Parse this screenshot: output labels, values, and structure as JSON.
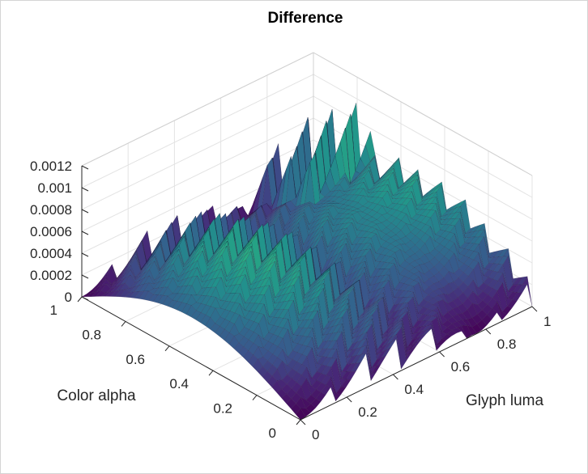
{
  "chart_data": {
    "type": "surface3d",
    "title": "Difference",
    "xlabel": "Color alpha",
    "ylabel": "Glyph luma",
    "zlabel": "",
    "xlim": [
      0,
      1
    ],
    "ylim": [
      0,
      1
    ],
    "zlim": [
      0,
      0.0012
    ],
    "x_ticks": [
      "0",
      "0.2",
      "0.4",
      "0.6",
      "0.8",
      "1"
    ],
    "y_ticks": [
      "0",
      "0.2",
      "0.4",
      "0.6",
      "0.8",
      "1"
    ],
    "z_ticks": [
      "0",
      "0.0002",
      "0.0004",
      "0.0006",
      "0.0008",
      "0.001",
      "0.0012"
    ],
    "colormap": "viridis",
    "grid": true,
    "description_values": {
      "peak_value": 0.0012,
      "min_value": 0
    }
  },
  "colors": {
    "background": "#ffffff",
    "axis": "#262626",
    "grid": "#e3e3e3"
  }
}
